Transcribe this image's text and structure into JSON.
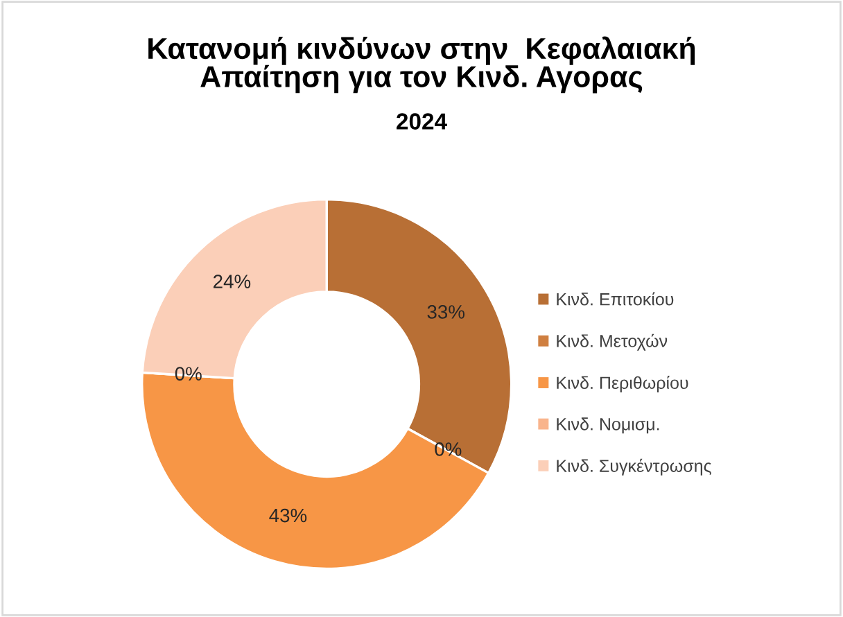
{
  "chart_data": {
    "type": "donut",
    "title": "Κατανομή κινδύνων στην  Κεφαλαιακή\nΑπαίτηση για τον Κινδ. Αγορας",
    "subtitle": "2024",
    "categories": [
      "Κινδ. Επιτοκίου",
      "Κινδ. Μετοχών",
      "Κινδ. Περιθωρίου",
      "Κινδ. Νομισμ.",
      "Κινδ. Συγκέντρωσης"
    ],
    "values": [
      33,
      0,
      43,
      0,
      24
    ],
    "colors": [
      "#b86f35",
      "#cf7f40",
      "#f79646",
      "#f9b48c",
      "#fbcfb8"
    ],
    "value_labels": [
      "33%",
      "0%",
      "43%",
      "0%",
      "24%"
    ],
    "legend": "right"
  }
}
